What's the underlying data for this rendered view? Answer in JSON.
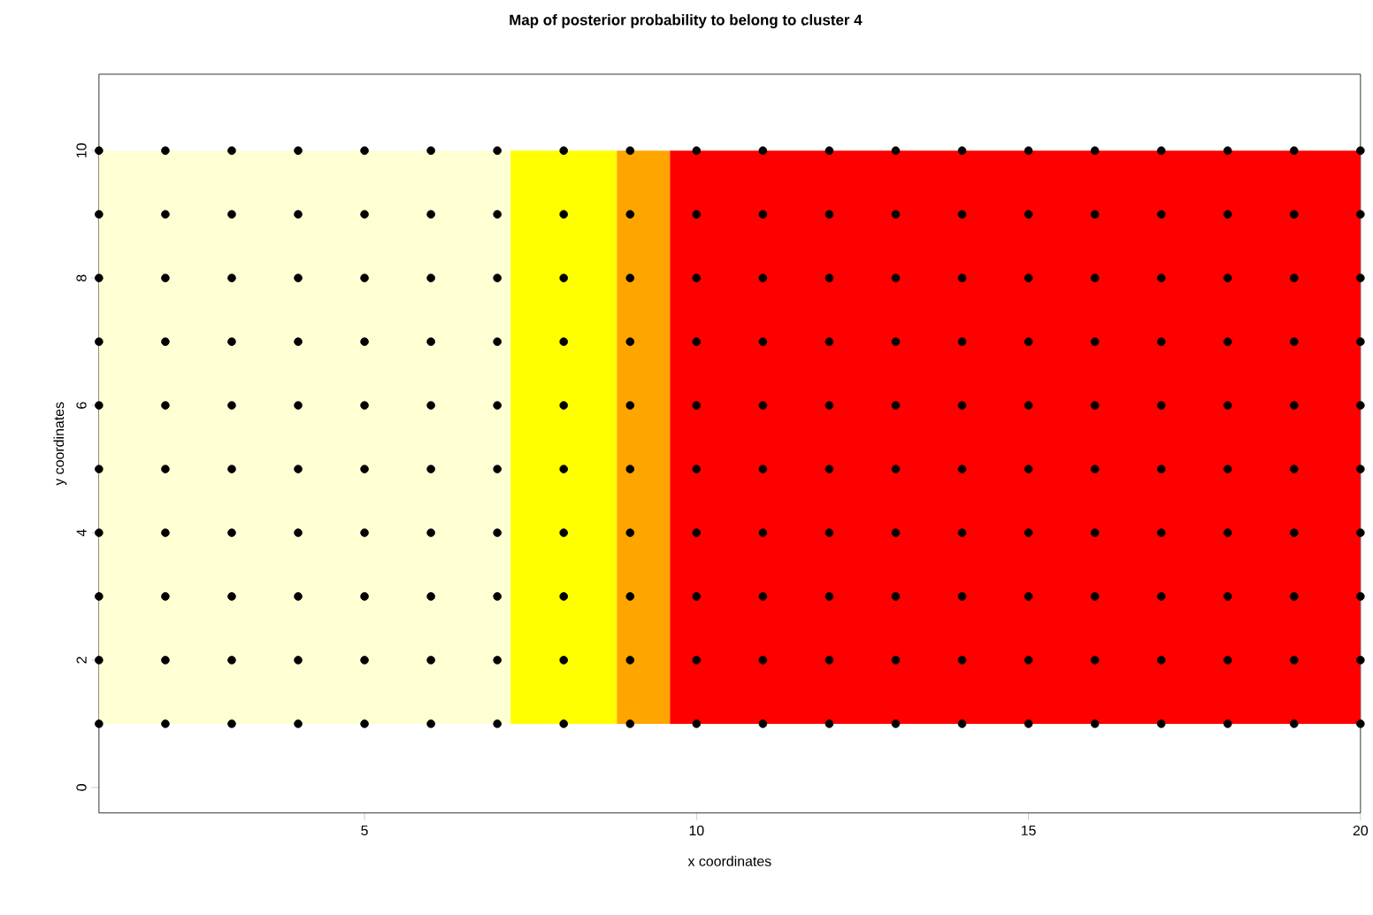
{
  "chart_data": {
    "type": "scatter",
    "title": "Map of posterior probability to belong to cluster  4",
    "xlabel": "x coordinates",
    "ylabel": "y coordinates",
    "x": [
      1,
      2,
      3,
      4,
      5,
      6,
      7,
      8,
      9,
      10,
      11,
      12,
      13,
      14,
      15,
      16,
      17,
      18,
      19,
      20,
      1,
      2,
      3,
      4,
      5,
      6,
      7,
      8,
      9,
      10,
      11,
      12,
      13,
      14,
      15,
      16,
      17,
      18,
      19,
      20,
      1,
      2,
      3,
      4,
      5,
      6,
      7,
      8,
      9,
      10,
      11,
      12,
      13,
      14,
      15,
      16,
      17,
      18,
      19,
      20,
      1,
      2,
      3,
      4,
      5,
      6,
      7,
      8,
      9,
      10,
      11,
      12,
      13,
      14,
      15,
      16,
      17,
      18,
      19,
      20,
      1,
      2,
      3,
      4,
      5,
      6,
      7,
      8,
      9,
      10,
      11,
      12,
      13,
      14,
      15,
      16,
      17,
      18,
      19,
      20,
      1,
      2,
      3,
      4,
      5,
      6,
      7,
      8,
      9,
      10,
      11,
      12,
      13,
      14,
      15,
      16,
      17,
      18,
      19,
      20,
      1,
      2,
      3,
      4,
      5,
      6,
      7,
      8,
      9,
      10,
      11,
      12,
      13,
      14,
      15,
      16,
      17,
      18,
      19,
      20,
      1,
      2,
      3,
      4,
      5,
      6,
      7,
      8,
      9,
      10,
      11,
      12,
      13,
      14,
      15,
      16,
      17,
      18,
      19,
      20,
      1,
      2,
      3,
      4,
      5,
      6,
      7,
      8,
      9,
      10,
      11,
      12,
      13,
      14,
      15,
      16,
      17,
      18,
      19,
      20,
      1,
      2,
      3,
      4,
      5,
      6,
      7,
      8,
      9,
      10,
      11,
      12,
      13,
      14,
      15,
      16,
      17,
      18,
      19,
      20
    ],
    "values": [
      1,
      1,
      1,
      1,
      1,
      1,
      1,
      1,
      1,
      1,
      1,
      1,
      1,
      1,
      1,
      1,
      1,
      1,
      1,
      1,
      2,
      2,
      2,
      2,
      2,
      2,
      2,
      2,
      2,
      2,
      2,
      2,
      2,
      2,
      2,
      2,
      2,
      2,
      2,
      2,
      3,
      3,
      3,
      3,
      3,
      3,
      3,
      3,
      3,
      3,
      3,
      3,
      3,
      3,
      3,
      3,
      3,
      3,
      3,
      3,
      4,
      4,
      4,
      4,
      4,
      4,
      4,
      4,
      4,
      4,
      4,
      4,
      4,
      4,
      4,
      4,
      4,
      4,
      4,
      4,
      5,
      5,
      5,
      5,
      5,
      5,
      5,
      5,
      5,
      5,
      5,
      5,
      5,
      5,
      5,
      5,
      5,
      5,
      5,
      5,
      6,
      6,
      6,
      6,
      6,
      6,
      6,
      6,
      6,
      6,
      6,
      6,
      6,
      6,
      6,
      6,
      6,
      6,
      6,
      6,
      7,
      7,
      7,
      7,
      7,
      7,
      7,
      7,
      7,
      7,
      7,
      7,
      7,
      7,
      7,
      7,
      7,
      7,
      7,
      7,
      8,
      8,
      8,
      8,
      8,
      8,
      8,
      8,
      8,
      8,
      8,
      8,
      8,
      8,
      8,
      8,
      8,
      8,
      8,
      8,
      9,
      9,
      9,
      9,
      9,
      9,
      9,
      9,
      9,
      9,
      9,
      9,
      9,
      9,
      9,
      9,
      9,
      9,
      9,
      9,
      10,
      10,
      10,
      10,
      10,
      10,
      10,
      10,
      10,
      10,
      10,
      10,
      10,
      10,
      10,
      10,
      10,
      10,
      10,
      10
    ],
    "color": "#000000",
    "marker": "circle",
    "xlim": [
      1,
      20
    ],
    "ylim": [
      -0.4,
      11.2
    ],
    "xticks": [
      5,
      10,
      15,
      20
    ],
    "yticks": [
      0,
      2,
      4,
      6,
      8,
      10
    ],
    "bands": [
      {
        "axis": "x",
        "from": 1,
        "to": 7.2,
        "color": "#ffffd4"
      },
      {
        "axis": "x",
        "from": 7.2,
        "to": 8.8,
        "color": "#ffff00"
      },
      {
        "axis": "x",
        "from": 8.8,
        "to": 9.6,
        "color": "#ffa500"
      },
      {
        "axis": "x",
        "from": 9.6,
        "to": 20,
        "color": "#ff0000"
      }
    ]
  }
}
